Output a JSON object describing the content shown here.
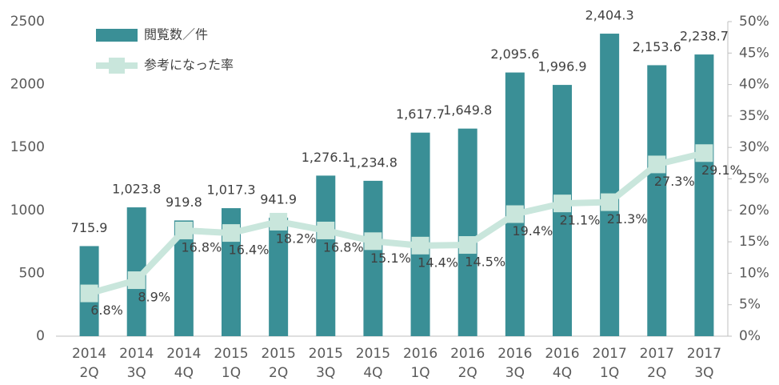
{
  "chart_data": {
    "type": "bar-line",
    "categories": [
      [
        "2014",
        "2Q"
      ],
      [
        "2014",
        "3Q"
      ],
      [
        "2014",
        "4Q"
      ],
      [
        "2015",
        "1Q"
      ],
      [
        "2015",
        "2Q"
      ],
      [
        "2015",
        "3Q"
      ],
      [
        "2015",
        "4Q"
      ],
      [
        "2016",
        "1Q"
      ],
      [
        "2016",
        "2Q"
      ],
      [
        "2016",
        "3Q"
      ],
      [
        "2016",
        "4Q"
      ],
      [
        "2017",
        "1Q"
      ],
      [
        "2017",
        "2Q"
      ],
      [
        "2017",
        "3Q"
      ]
    ],
    "series": [
      {
        "name": "閲覧数／件",
        "type": "bar",
        "color": "#3a8f96",
        "values": [
          715.9,
          1023.8,
          919.8,
          1017.3,
          941.9,
          1276.1,
          1234.8,
          1617.7,
          1649.8,
          2095.6,
          1996.9,
          2404.3,
          2153.6,
          2238.7
        ],
        "value_labels": [
          "715.9",
          "1,023.8",
          "919.8",
          "1,017.3",
          "941.9",
          "1,276.1",
          "1,234.8",
          "1,617.7",
          "1,649.8",
          "2,095.6",
          "1,996.9",
          "2,404.3",
          "2,153.6",
          "2,238.7"
        ]
      },
      {
        "name": "参考になった率",
        "type": "line",
        "axis": "y2",
        "color": "#c9e6dc",
        "values": [
          6.8,
          8.9,
          16.8,
          16.4,
          18.2,
          16.8,
          15.1,
          14.4,
          14.5,
          19.4,
          21.1,
          21.3,
          27.3,
          29.1
        ],
        "value_labels": [
          "6.8%",
          "8.9%",
          "16.8%",
          "16.4%",
          "18.2%",
          "16.8%",
          "15.1%",
          "14.4%",
          "14.5%",
          "19.4%",
          "21.1%",
          "21.3%",
          "27.3%",
          "29.1%"
        ]
      }
    ],
    "ylim": [
      0,
      2500
    ],
    "yticks": [
      0,
      500,
      1000,
      1500,
      2000,
      2500
    ],
    "y2lim": [
      0,
      50
    ],
    "y2ticks": [
      {
        "value": 0,
        "label": "0%"
      },
      {
        "value": 5,
        "label": "5%"
      },
      {
        "value": 10,
        "label": "10%"
      },
      {
        "value": 15,
        "label": "15%"
      },
      {
        "value": 20,
        "label": "20%"
      },
      {
        "value": 25,
        "label": "25%"
      },
      {
        "value": 30,
        "label": "30%"
      },
      {
        "value": 35,
        "label": "35%"
      },
      {
        "value": 40,
        "label": "40%"
      },
      {
        "value": 45,
        "label": "45%"
      },
      {
        "value": 50,
        "label": "50%"
      }
    ],
    "legend": "top-left"
  }
}
